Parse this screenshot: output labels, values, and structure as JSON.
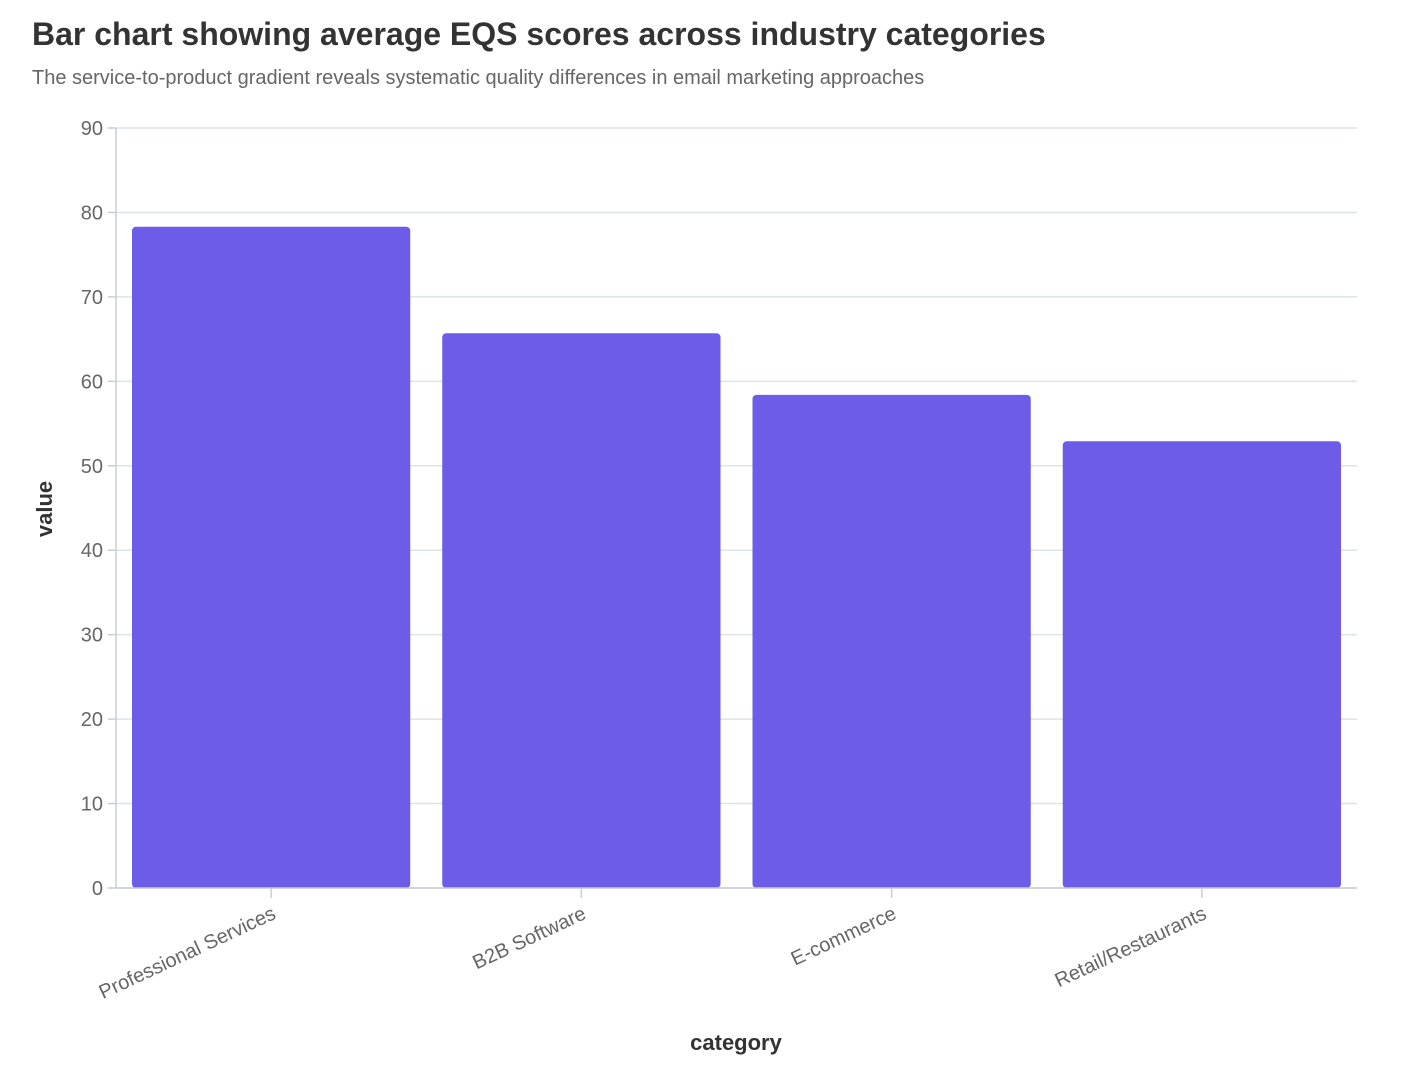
{
  "title": "Bar chart showing average EQS scores across industry categories",
  "subtitle": "The service-to-product gradient reveals systematic quality differences in email marketing approaches",
  "chart_data": {
    "type": "bar",
    "categories": [
      "Professional Services",
      "B2B Software",
      "E-commerce",
      "Retail/Restaurants"
    ],
    "values": [
      78.3,
      65.7,
      58.4,
      52.9
    ],
    "xlabel": "category",
    "ylabel": "value",
    "ylim": [
      0,
      90
    ],
    "yticks": [
      0,
      10,
      20,
      30,
      40,
      50,
      60,
      70,
      80,
      90
    ],
    "grid": true,
    "bar_color": "#6c5ce7"
  }
}
